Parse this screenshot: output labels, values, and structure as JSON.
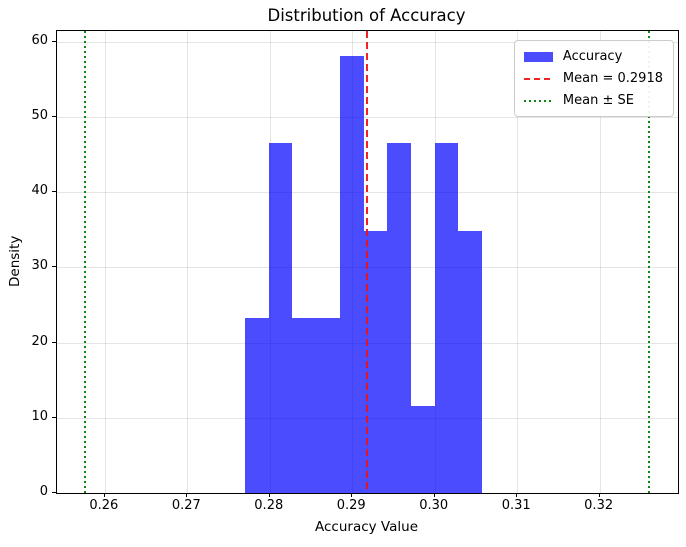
{
  "chart_data": {
    "type": "bar",
    "subtype": "histogram",
    "title": "Distribution of Accuracy",
    "xlabel": "Accuracy Value",
    "ylabel": "Density",
    "xlim": [
      0.2542,
      0.3295
    ],
    "ylim": [
      0,
      61.4
    ],
    "xtick_values": [
      0.26,
      0.27,
      0.28,
      0.29,
      0.3,
      0.31,
      0.32
    ],
    "xtick_labels": [
      "0.26",
      "0.27",
      "0.28",
      "0.29",
      "0.30",
      "0.31",
      "0.32"
    ],
    "ytick_values": [
      0,
      10,
      20,
      30,
      40,
      50,
      60
    ],
    "ytick_labels": [
      "0",
      "10",
      "20",
      "30",
      "40",
      "50",
      "60"
    ],
    "grid": true,
    "bin_edges": [
      0.277,
      0.27988,
      0.28275,
      0.28563,
      0.2885,
      0.29138,
      0.29425,
      0.29713,
      0.3,
      0.30288,
      0.30575
    ],
    "densities": [
      23.2,
      46.5,
      23.2,
      23.2,
      58.1,
      34.8,
      46.5,
      11.6,
      46.5,
      34.8
    ],
    "series_label": "Accuracy",
    "bar_color": "#0000ff",
    "bar_opacity": 0.7,
    "mean_line": {
      "value": 0.2918,
      "label": "Mean = 0.2918",
      "color": "#ee1111",
      "style": "dashed"
    },
    "se_lines": {
      "values": [
        0.2576,
        0.326
      ],
      "label": "Mean ± SE",
      "color": "#008000",
      "style": "dotted"
    },
    "legend_position": "upper right"
  }
}
